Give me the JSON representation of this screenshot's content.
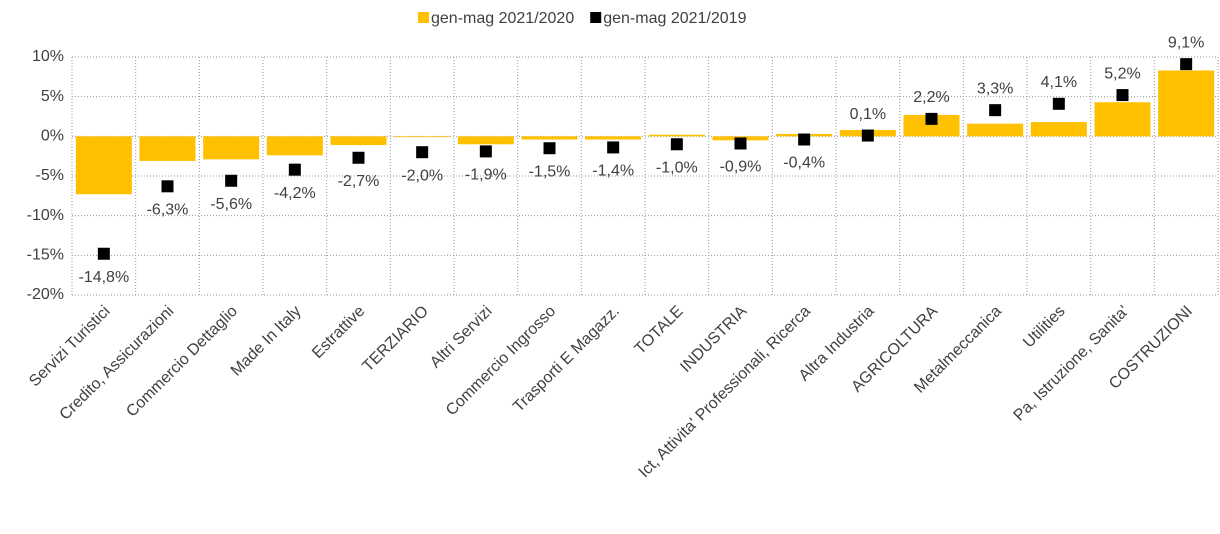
{
  "chart_data": {
    "type": "bar",
    "categories": [
      "Servizi Turistici",
      "Credito, Assicurazioni",
      "Commercio Dettaglio",
      "Made In Italy",
      "Estrattive",
      "TERZIARIO",
      "Altri Servizi",
      "Commercio Ingrosso",
      "Trasporti E Magazz.",
      "TOTALE",
      "INDUSTRIA",
      "Ict, Attivita' Professionali, Ricerca",
      "Altra Industria",
      "AGRICOLTURA",
      "Metalmeccanica",
      "Utilities",
      "Pa, Istruzione, Sanita'",
      "COSTRUZIONI"
    ],
    "series": [
      {
        "name": "gen-mag 2021/2020",
        "color": "#FFC000",
        "type": "bar",
        "values": [
          -7.3,
          -3.1,
          -2.9,
          -2.4,
          -1.1,
          -0.1,
          -1.0,
          -0.4,
          -0.4,
          0.2,
          -0.5,
          0.3,
          0.8,
          2.7,
          1.6,
          1.8,
          4.3,
          8.3
        ]
      },
      {
        "name": "gen-mag 2021/2019",
        "color": "#000000",
        "type": "scatter",
        "values": [
          -14.8,
          -6.3,
          -5.6,
          -4.2,
          -2.7,
          -2.0,
          -1.9,
          -1.5,
          -1.4,
          -1.0,
          -0.9,
          -0.4,
          0.1,
          2.2,
          3.3,
          4.1,
          5.2,
          9.1
        ],
        "value_labels": [
          "-14,8%",
          "-6,3%",
          "-5,6%",
          "-4,2%",
          "-2,7%",
          "-2,0%",
          "-1,9%",
          "-1,5%",
          "-1,4%",
          "-1,0%",
          "-0,9%",
          "-0,4%",
          "0,1%",
          "2,2%",
          "3,3%",
          "4,1%",
          "5,2%",
          "9,1%"
        ]
      }
    ],
    "ylim": [
      -20,
      10
    ],
    "yticks": [
      {
        "value": -20,
        "label": "-20%"
      },
      {
        "value": -15,
        "label": "-15%"
      },
      {
        "value": -10,
        "label": "-10%"
      },
      {
        "value": -5,
        "label": "-5%"
      },
      {
        "value": 0,
        "label": "0%"
      },
      {
        "value": 5,
        "label": "5%"
      },
      {
        "value": 10,
        "label": "10%"
      }
    ],
    "grid": true,
    "legend": "top"
  }
}
